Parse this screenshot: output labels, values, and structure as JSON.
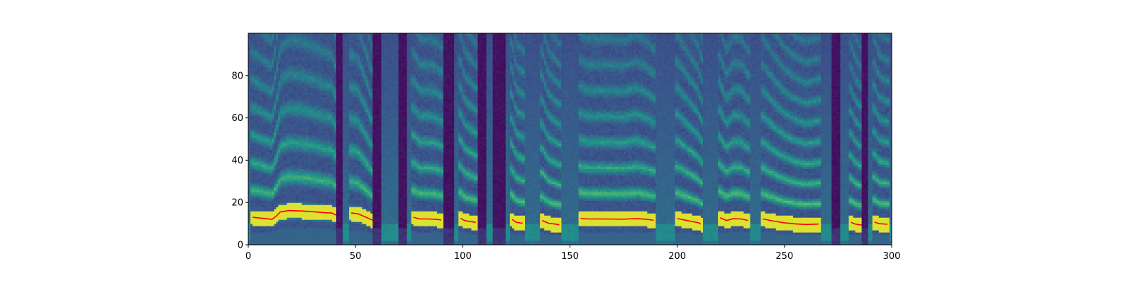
{
  "chart_data": {
    "type": "heatmap",
    "title": "",
    "xlabel": "",
    "ylabel": "",
    "colormap": "viridis",
    "xlim": [
      0,
      300
    ],
    "ylim": [
      0,
      100
    ],
    "grid": false,
    "xticks": [
      "0",
      "50",
      "100",
      "150",
      "200",
      "250",
      "300"
    ],
    "yticks": [
      "0",
      "20",
      "40",
      "60",
      "80"
    ],
    "overlay_color": "#ff0000",
    "voiced_segments": [
      {
        "start": 2,
        "end": 41,
        "pitch_contour": [
          [
            2,
            13
          ],
          [
            6,
            12.6
          ],
          [
            9,
            12.3
          ],
          [
            11,
            12
          ],
          [
            13,
            13.5
          ],
          [
            15,
            15.6
          ],
          [
            19,
            16.2
          ],
          [
            25,
            16
          ],
          [
            31,
            15.6
          ],
          [
            35,
            15.2
          ],
          [
            39,
            15
          ],
          [
            41,
            14
          ]
        ]
      },
      {
        "start": 48,
        "end": 58,
        "pitch_contour": [
          [
            48,
            15
          ],
          [
            51,
            14.7
          ],
          [
            54,
            13.4
          ],
          [
            58,
            11.6
          ]
        ]
      },
      {
        "start": 77,
        "end": 90,
        "pitch_contour": [
          [
            77,
            13
          ],
          [
            80,
            12.2
          ],
          [
            84,
            12.2
          ],
          [
            88,
            12
          ],
          [
            90,
            11.7
          ]
        ]
      },
      {
        "start": 99,
        "end": 106,
        "pitch_contour": [
          [
            99,
            12.5
          ],
          [
            101,
            11.4
          ],
          [
            106,
            10.6
          ]
        ]
      },
      {
        "start": 123,
        "end": 128,
        "pitch_contour": [
          [
            123,
            12
          ],
          [
            125,
            10.6
          ],
          [
            128,
            10.2
          ]
        ]
      },
      {
        "start": 137,
        "end": 145,
        "pitch_contour": [
          [
            137,
            11.5
          ],
          [
            140,
            10.2
          ],
          [
            145,
            9.5
          ]
        ]
      },
      {
        "start": 155,
        "end": 189,
        "pitch_contour": [
          [
            155,
            12.5
          ],
          [
            158,
            12.2
          ],
          [
            165,
            12.2
          ],
          [
            175,
            12.1
          ],
          [
            181,
            12.4
          ],
          [
            186,
            12
          ],
          [
            189,
            11.6
          ]
        ]
      },
      {
        "start": 200,
        "end": 211,
        "pitch_contour": [
          [
            200,
            12.4
          ],
          [
            204,
            11.6
          ],
          [
            207,
            11
          ],
          [
            210,
            10.4
          ],
          [
            211,
            9.8
          ]
        ]
      },
      {
        "start": 220,
        "end": 233,
        "pitch_contour": [
          [
            220,
            12.8
          ],
          [
            223,
            11.5
          ],
          [
            226,
            12.3
          ],
          [
            230,
            12.2
          ],
          [
            233,
            11.5
          ]
        ]
      },
      {
        "start": 240,
        "end": 266,
        "pitch_contour": [
          [
            240,
            12.2
          ],
          [
            245,
            11.2
          ],
          [
            250,
            10.4
          ],
          [
            255,
            9.9
          ],
          [
            260,
            9.6
          ],
          [
            266,
            9.8
          ]
        ]
      },
      {
        "start": 281,
        "end": 286,
        "pitch_contour": [
          [
            281,
            10.6
          ],
          [
            283,
            9.8
          ],
          [
            286,
            9.3
          ]
        ]
      },
      {
        "start": 292,
        "end": 298,
        "pitch_contour": [
          [
            292,
            10.8
          ],
          [
            294,
            10
          ],
          [
            298,
            9.7
          ]
        ]
      }
    ],
    "silent_gaps": [
      [
        41,
        44
      ],
      [
        58,
        62
      ],
      [
        70,
        74
      ],
      [
        91,
        96
      ],
      [
        107,
        111
      ],
      [
        114,
        120
      ],
      [
        272,
        276
      ],
      [
        286,
        289
      ]
    ]
  }
}
